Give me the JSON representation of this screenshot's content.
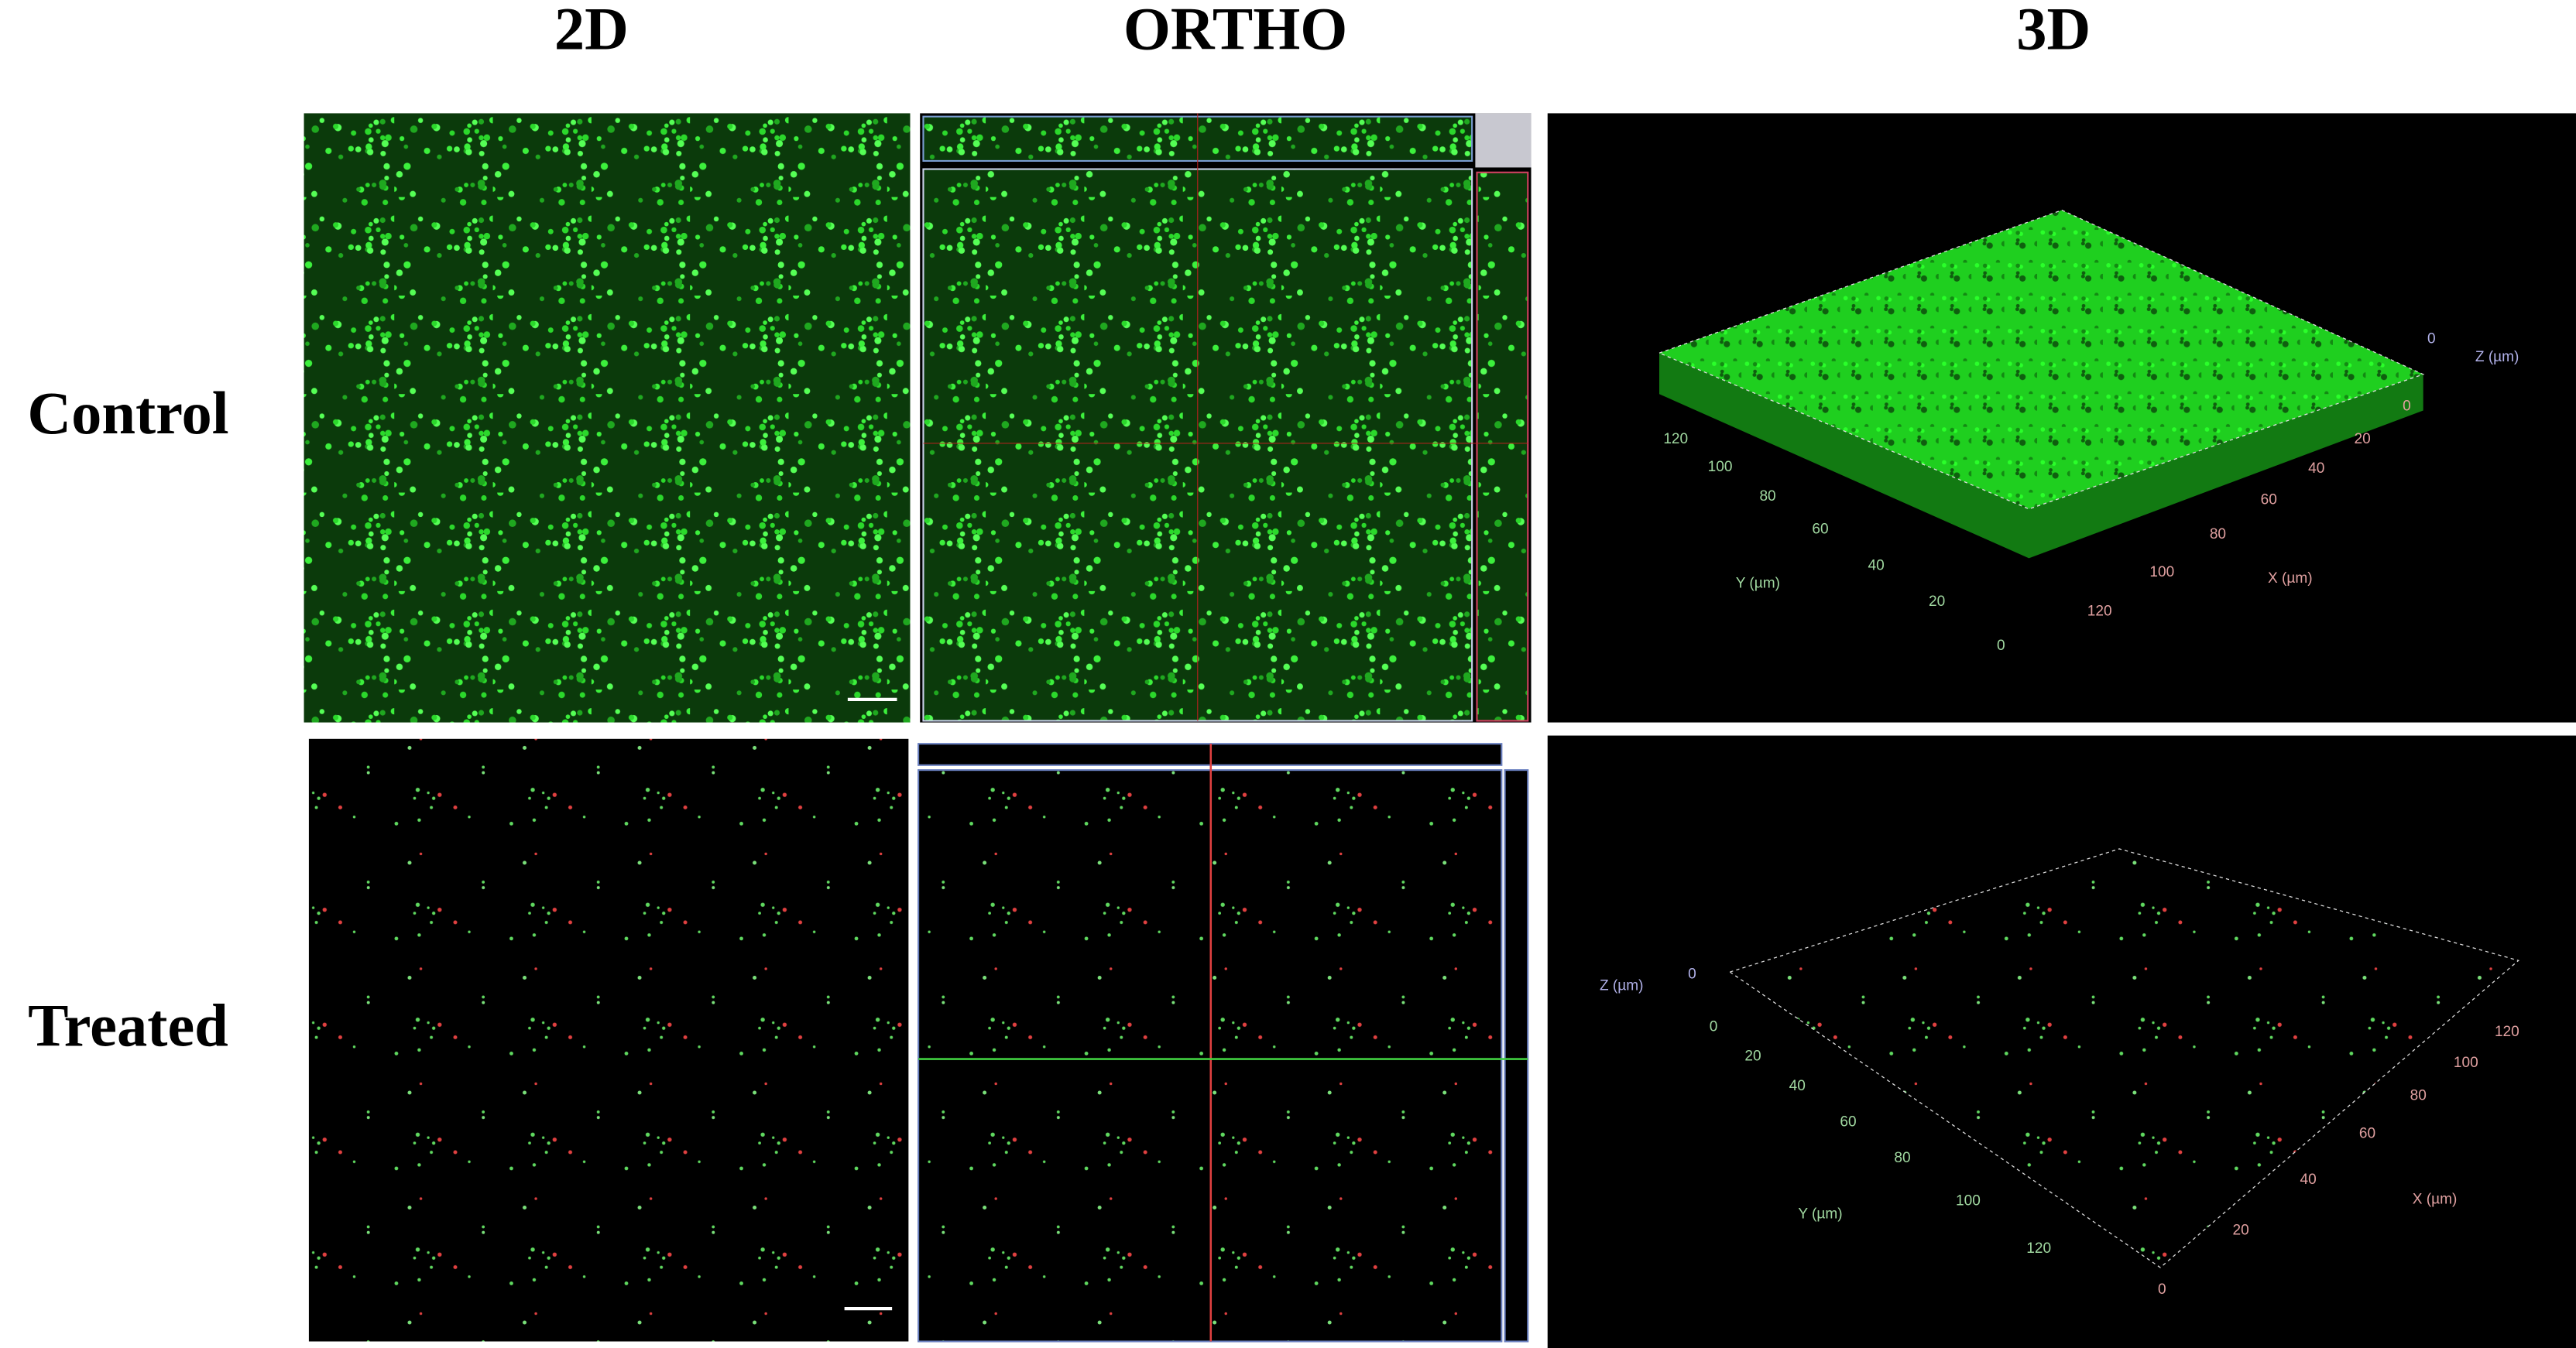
{
  "headers": [
    "2D",
    "ORTHO",
    "3D"
  ],
  "rows": [
    "Control",
    "Treated"
  ],
  "plots3d": [
    {
      "x_label": "X (µm)",
      "y_label": "Y (µm)",
      "z_label": "Z (µm)",
      "x_ticks": [
        0,
        20,
        40,
        60,
        80,
        100,
        120
      ],
      "y_ticks": [
        0,
        20,
        40,
        60,
        80,
        100,
        120
      ],
      "z_ticks": [
        0
      ]
    },
    {
      "x_label": "X (µm)",
      "y_label": "Y (µm)",
      "z_label": "Z (µm)",
      "x_ticks": [
        0,
        20,
        40,
        60,
        80,
        100,
        120
      ],
      "y_ticks": [
        0,
        20,
        40,
        60,
        80,
        100,
        120
      ],
      "z_ticks": [
        0
      ]
    }
  ]
}
